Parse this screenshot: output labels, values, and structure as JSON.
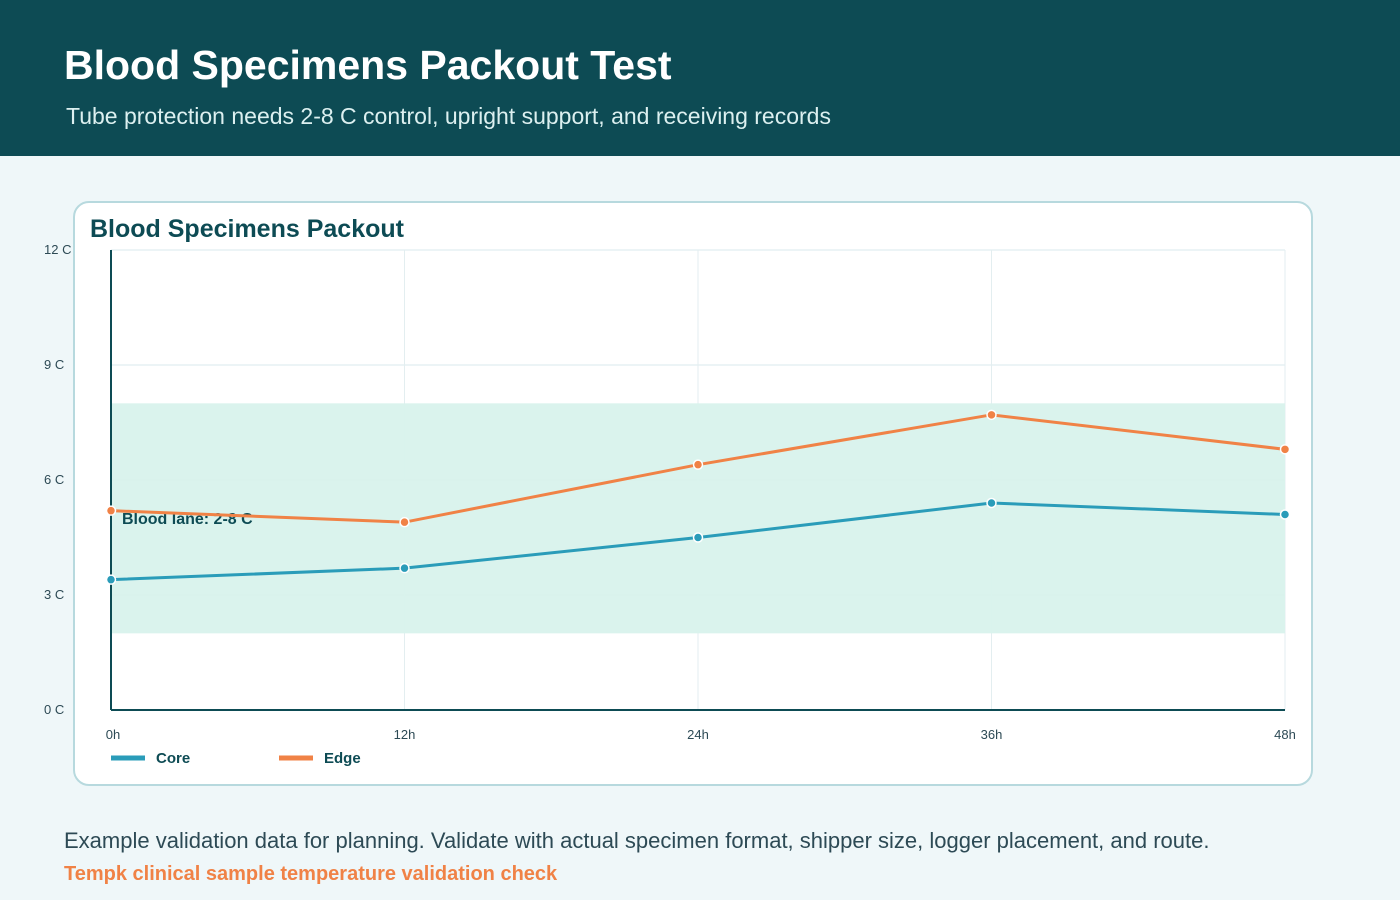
{
  "header": {
    "title": "Blood Specimens Packout Test",
    "subtitle": "Tube protection needs 2-8 C control, upright support, and receiving records"
  },
  "chart_data": {
    "type": "line",
    "title": "Blood Specimens Packout",
    "categories": [
      "0h",
      "12h",
      "24h",
      "36h",
      "48h"
    ],
    "x": [
      0,
      12,
      24,
      36,
      48
    ],
    "ylim": [
      0,
      12
    ],
    "y_ticks": [
      0,
      3,
      6,
      9,
      12
    ],
    "y_tick_labels": [
      "0 C",
      "3 C",
      "6 C",
      "9 C",
      "12 C"
    ],
    "grid": true,
    "legend_position": "bottom-left",
    "band": {
      "label": "Blood lane: 2-8 C",
      "from": 2,
      "to": 8,
      "color": "#d8f2ec"
    },
    "series": [
      {
        "name": "Core",
        "values": [
          3.4,
          3.7,
          4.5,
          5.4,
          5.1
        ],
        "color": "#2a9cb9"
      },
      {
        "name": "Edge",
        "values": [
          5.2,
          4.9,
          6.4,
          7.7,
          6.8
        ],
        "color": "#f08246"
      }
    ]
  },
  "footer": {
    "note": "Example validation data for planning. Validate with actual specimen format, shipper size, logger placement, and route.",
    "brand": "Tempk clinical sample temperature validation check"
  }
}
